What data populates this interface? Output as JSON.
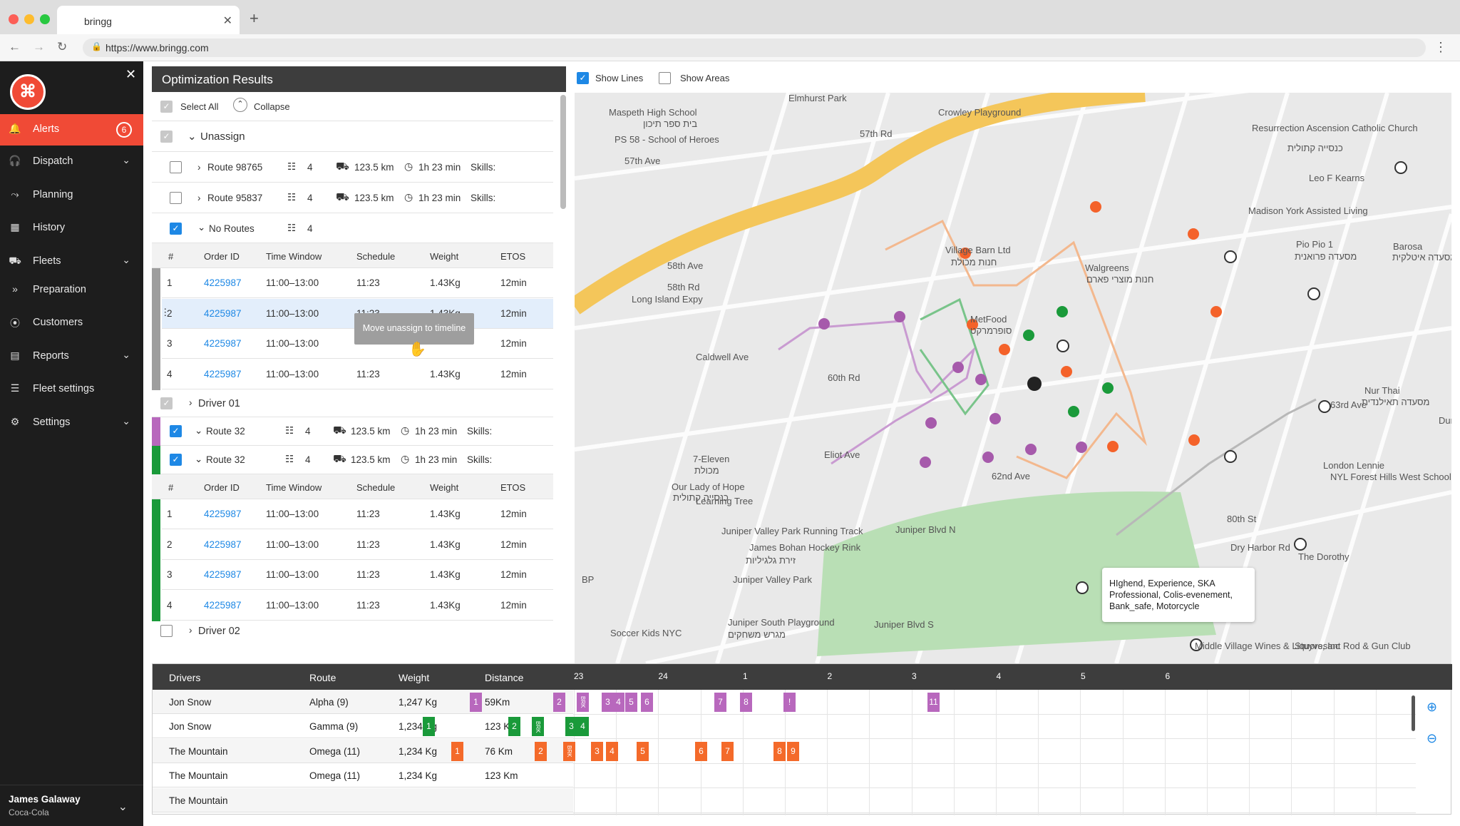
{
  "browser": {
    "tab_title": "bringg",
    "url": "https://www.bringg.com"
  },
  "sidebar": {
    "items": [
      {
        "label": "Alerts",
        "icon": "bell-icon",
        "badge": "6",
        "active": true
      },
      {
        "label": "Dispatch",
        "icon": "headset-icon",
        "has_children": true
      },
      {
        "label": "Planning",
        "icon": "route-plan-icon"
      },
      {
        "label": "History",
        "icon": "calendar-icon"
      },
      {
        "label": "Fleets",
        "icon": "truck-icon",
        "has_children": true
      },
      {
        "label": "Preparation",
        "icon": "chevrons-right-icon"
      },
      {
        "label": "Customers",
        "icon": "location-pin-icon"
      },
      {
        "label": "Reports",
        "icon": "bar-chart-icon",
        "has_children": true
      },
      {
        "label": "Fleet settings",
        "icon": "list-icon"
      },
      {
        "label": "Settings",
        "icon": "gear-icon",
        "has_children": true
      }
    ],
    "user": {
      "name": "James Galaway",
      "company": "Coca-Cola"
    }
  },
  "panel": {
    "title": "Optimization Results",
    "select_all": "Select All",
    "collapse": "Collapse",
    "unassign": "Unassign",
    "routes": [
      {
        "name": "Route 98765",
        "orders": "4",
        "distance": "123.5 km",
        "duration": "1h 23 min",
        "skills": "Skills:"
      },
      {
        "name": "Route 95837",
        "orders": "4",
        "distance": "123.5 km",
        "duration": "1h 23 min",
        "skills": "Skills:"
      }
    ],
    "no_routes": {
      "name": "No Routes",
      "orders": "4"
    },
    "columns": [
      "#",
      "Order ID",
      "Time Window",
      "Schedule",
      "Weight",
      "ETOS"
    ],
    "orders_a": [
      {
        "n": "1",
        "id": "4225987",
        "tw": "11:00–13:00",
        "sched": "11:23",
        "w": "1.43Kg",
        "etos": "12min"
      },
      {
        "n": "2",
        "id": "4225987",
        "tw": "11:00–13:00",
        "sched": "11:23",
        "w": "1.43Kg",
        "etos": "12min"
      },
      {
        "n": "3",
        "id": "4225987",
        "tw": "11:00–13:00",
        "sched": "",
        "w": "",
        "etos": "12min"
      },
      {
        "n": "4",
        "id": "4225987",
        "tw": "11:00–13:00",
        "sched": "11:23",
        "w": "1.43Kg",
        "etos": "12min"
      }
    ],
    "tooltip": "Move unassign to timeline",
    "driver1": "Driver 01",
    "driver_routes": [
      {
        "name": "Route 32",
        "orders": "4",
        "distance": "123.5 km",
        "duration": "1h 23 min",
        "skills": "Skills:",
        "color": "#b868bd"
      },
      {
        "name": "Route 32",
        "orders": "4",
        "distance": "123.5 km",
        "duration": "1h 23 min",
        "skills": "Skills:",
        "color": "#1a9a3a"
      }
    ],
    "orders_b": [
      {
        "n": "1",
        "id": "4225987",
        "tw": "11:00–13:00",
        "sched": "11:23",
        "w": "1.43Kg",
        "etos": "12min"
      },
      {
        "n": "2",
        "id": "4225987",
        "tw": "11:00–13:00",
        "sched": "11:23",
        "w": "1.43Kg",
        "etos": "12min"
      },
      {
        "n": "3",
        "id": "4225987",
        "tw": "11:00–13:00",
        "sched": "11:23",
        "w": "1.43Kg",
        "etos": "12min"
      },
      {
        "n": "4",
        "id": "4225987",
        "tw": "11:00–13:00",
        "sched": "11:23",
        "w": "1.43Kg",
        "etos": "12min"
      }
    ],
    "driver2": "Driver 02"
  },
  "map": {
    "show_lines": "Show Lines",
    "show_areas": "Show Areas",
    "labels": [
      "Elmhurst Park",
      "Maspeth High School",
      "בית ספר תיכון",
      "PS 58 - School of Heroes",
      "57th Ave",
      "Crowley Playground",
      "Resurrection Ascension Catholic Church",
      "כנסייה קתולית",
      "Leo F Kearns",
      "Madison York Assisted Living",
      "Pio Pio 1",
      "מסעדה פרואנית",
      "Barosa",
      "מסעדה איטלקית",
      "Village Barn Ltd",
      "חנות מכולת",
      "Walgreens",
      "חנות מוצרי פארם",
      "MetFood",
      "סופרמרקט",
      "Long Island Expy",
      "Nur Thai",
      "מסעדה תאילנדית",
      "7-Eleven",
      "מכולת",
      "Our Lady of Hope",
      "כנסייה קתולית",
      "Learning Tree",
      "London Lennie",
      "NYL Forest Hills West School",
      "Juniper Valley Park Running Track",
      "James Bohan Hockey Rink",
      "זירת גלגיליות",
      "Juniper Valley Park",
      "The Dorothy",
      "Juniper South Playground",
      "מגרש משחקים",
      "Middle Village Wines & Liquors, Inc",
      "Stuyvesant Rod & Gun Club",
      "Juniper Blvd N",
      "Juniper Blvd S",
      "Eliot Ave",
      "63rd Ave",
      "Dry Harbor Rd",
      "Caldwell Ave",
      "60th Rd",
      "62nd Ave",
      "80th St",
      "58th Ave",
      "58th Rd",
      "57th Rd",
      "Soccer Kids NYC",
      "BP",
      "Dur"
    ],
    "info": "HIghend, Experience, SKA Professional, Colis-evenement, Bank_safe, Motorcycle"
  },
  "gantt": {
    "columns": [
      "Drivers",
      "Route",
      "Weight",
      "Distance"
    ],
    "hours": [
      "23",
      "24",
      "1",
      "2",
      "3",
      "4",
      "5",
      "6"
    ],
    "rows": [
      {
        "driver": "Jon Snow",
        "route": "Alpha (9)",
        "weight": "1,247 Kg",
        "distance": "59Km"
      },
      {
        "driver": "Jon Snow",
        "route": "Gamma (9)",
        "weight": "1,234 Kg",
        "distance": "123 Km"
      },
      {
        "driver": "The Mountain",
        "route": "Omega (11)",
        "weight": "1,234 Kg",
        "distance": "76 Km"
      },
      {
        "driver": "The Mountain",
        "route": "Omega (11)",
        "weight": "1,234 Kg",
        "distance": "123 Km"
      },
      {
        "driver": "The Mountain",
        "route": "",
        "weight": "",
        "distance": ""
      }
    ],
    "stops": [
      {
        "row": 0,
        "labels": [
          "1",
          "2",
          "BRK",
          "3",
          "4",
          "5",
          "6",
          "7",
          "8",
          "!",
          "11"
        ]
      },
      {
        "row": 1,
        "labels": [
          "1",
          "2",
          "BRK",
          "3",
          "4"
        ]
      },
      {
        "row": 2,
        "labels": [
          "1",
          "2",
          "BRK",
          "3",
          "4",
          "5",
          "6",
          "7",
          "8",
          "9"
        ]
      }
    ],
    "colors": {
      "purple": "#b868bd",
      "green": "#1a9a3a",
      "orange": "#f46a2a"
    }
  }
}
